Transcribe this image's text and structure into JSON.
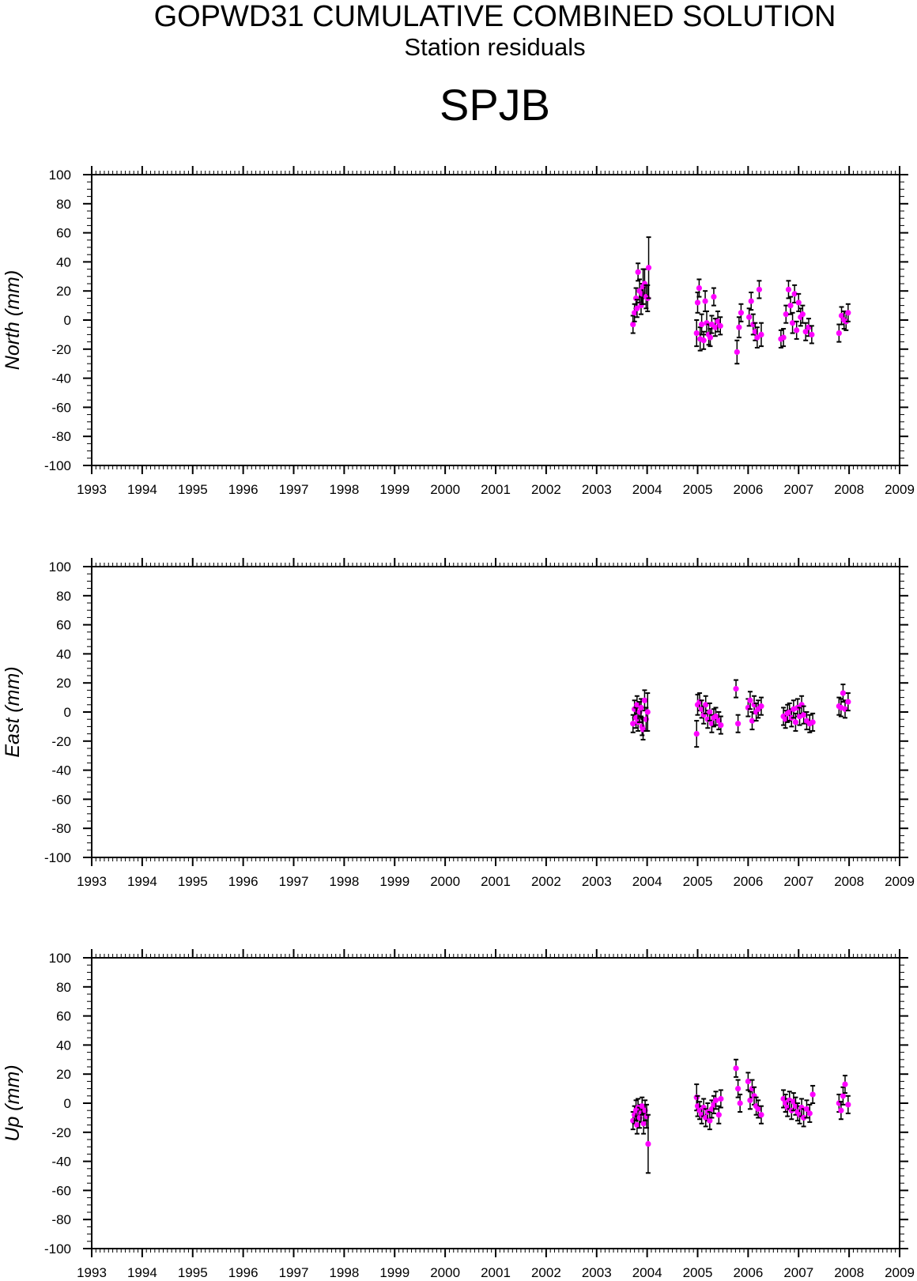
{
  "header": {
    "title": "GOPWD31 CUMULATIVE COMBINED SOLUTION",
    "subtitle": "Station residuals",
    "station": "SPJB"
  },
  "colors": {
    "marker": "#ff00ff",
    "error_bar": "#000000",
    "axes": "#000000"
  },
  "chart_data": [
    {
      "type": "scatter",
      "ylabel": "North (mm)",
      "xlim": [
        1993,
        2009
      ],
      "ylim": [
        -100,
        100
      ],
      "x_ticks": [
        "1993",
        "1994",
        "1995",
        "1996",
        "1997",
        "1998",
        "1999",
        "2000",
        "2001",
        "2002",
        "2003",
        "2004",
        "2005",
        "2006",
        "2007",
        "2008",
        "2009"
      ],
      "y_ticks": [
        "100",
        "80",
        "60",
        "40",
        "20",
        "0",
        "-20",
        "-40",
        "-60",
        "-80",
        "-100"
      ],
      "grid": false,
      "series": [
        {
          "x": [
            2003.72,
            2003.75,
            2003.78,
            2003.8,
            2003.82,
            2003.85,
            2003.88,
            2003.9,
            2003.92,
            2003.95,
            2003.98,
            2004.01,
            2004.03,
            2004.98,
            2005.0,
            2005.03,
            2005.05,
            2005.08,
            2005.12,
            2005.15,
            2005.18,
            2005.22,
            2005.25,
            2005.28,
            2005.32,
            2005.35,
            2005.4,
            2005.45,
            2005.78,
            2005.82,
            2005.86,
            2006.02,
            2006.06,
            2006.1,
            2006.14,
            2006.18,
            2006.22,
            2006.26,
            2006.65,
            2006.7,
            2006.75,
            2006.8,
            2006.84,
            2006.88,
            2006.92,
            2006.96,
            2007.0,
            2007.04,
            2007.08,
            2007.14,
            2007.2,
            2007.26,
            2007.8,
            2007.85,
            2007.9,
            2007.94,
            2007.98
          ],
          "y": [
            -3,
            5,
            15,
            8,
            33,
            20,
            10,
            18,
            23,
            25,
            16,
            15,
            36,
            -9,
            12,
            22,
            -13,
            -3,
            -14,
            13,
            -2,
            -10,
            -12,
            -3,
            16,
            -5,
            -1,
            -4,
            -22,
            -5,
            5,
            2,
            13,
            -3,
            -8,
            -12,
            21,
            -10,
            -13,
            -12,
            4,
            21,
            10,
            -2,
            18,
            -7,
            12,
            2,
            4,
            -8,
            -5,
            -10,
            -9,
            3,
            0,
            -1,
            5
          ],
          "err": [
            6,
            6,
            7,
            6,
            6,
            8,
            6,
            7,
            12,
            10,
            8,
            9,
            21,
            9,
            7,
            6,
            8,
            7,
            6,
            7,
            8,
            7,
            6,
            6,
            6,
            6,
            7,
            6,
            8,
            7,
            6,
            6,
            6,
            7,
            6,
            7,
            6,
            8,
            6,
            6,
            6,
            6,
            6,
            7,
            6,
            6,
            6,
            6,
            6,
            6,
            6,
            6,
            6,
            6,
            6,
            6,
            6
          ]
        }
      ]
    },
    {
      "type": "scatter",
      "ylabel": "East (mm)",
      "xlim": [
        1993,
        2009
      ],
      "ylim": [
        -100,
        100
      ],
      "x_ticks": [
        "1993",
        "1994",
        "1995",
        "1996",
        "1997",
        "1998",
        "1999",
        "2000",
        "2001",
        "2002",
        "2003",
        "2004",
        "2005",
        "2006",
        "2007",
        "2008",
        "2009"
      ],
      "y_ticks": [
        "100",
        "80",
        "60",
        "40",
        "20",
        "0",
        "-20",
        "-40",
        "-60",
        "-80",
        "-100"
      ],
      "grid": false,
      "series": [
        {
          "x": [
            2003.72,
            2003.75,
            2003.78,
            2003.8,
            2003.82,
            2003.85,
            2003.88,
            2003.9,
            2003.92,
            2003.95,
            2003.98,
            2004.01,
            2004.98,
            2005.0,
            2005.04,
            2005.08,
            2005.12,
            2005.16,
            2005.2,
            2005.24,
            2005.28,
            2005.32,
            2005.36,
            2005.42,
            2005.46,
            2005.76,
            2005.8,
            2006.0,
            2006.04,
            2006.08,
            2006.12,
            2006.16,
            2006.2,
            2006.26,
            2006.7,
            2006.74,
            2006.78,
            2006.82,
            2006.86,
            2006.9,
            2006.94,
            2006.98,
            2007.02,
            2007.06,
            2007.1,
            2007.16,
            2007.22,
            2007.28,
            2007.8,
            2007.84,
            2007.88,
            2007.92,
            2007.98
          ],
          "y": [
            -8,
            2,
            -4,
            5,
            -7,
            0,
            3,
            -10,
            -12,
            8,
            -5,
            0,
            -15,
            5,
            7,
            2,
            -2,
            5,
            -5,
            0,
            -8,
            -4,
            -3,
            -6,
            -9,
            16,
            -8,
            3,
            8,
            -6,
            5,
            0,
            2,
            4,
            -3,
            -5,
            -1,
            0,
            -4,
            2,
            -7,
            3,
            -3,
            5,
            -2,
            -6,
            -8,
            -7,
            4,
            3,
            13,
            2,
            7
          ],
          "err": [
            6,
            6,
            7,
            6,
            6,
            7,
            6,
            6,
            7,
            7,
            8,
            13,
            9,
            7,
            6,
            6,
            6,
            6,
            6,
            6,
            6,
            6,
            6,
            6,
            6,
            6,
            6,
            6,
            6,
            6,
            6,
            6,
            6,
            6,
            6,
            6,
            6,
            6,
            6,
            6,
            6,
            6,
            6,
            6,
            6,
            6,
            6,
            6,
            6,
            6,
            6,
            6,
            6
          ]
        }
      ]
    },
    {
      "type": "scatter",
      "ylabel": "Up (mm)",
      "xlim": [
        1993,
        2009
      ],
      "ylim": [
        -100,
        100
      ],
      "x_ticks": [
        "1993",
        "1994",
        "1995",
        "1996",
        "1997",
        "1998",
        "1999",
        "2000",
        "2001",
        "2002",
        "2003",
        "2004",
        "2005",
        "2006",
        "2007",
        "2008",
        "2009"
      ],
      "y_ticks": [
        "100",
        "80",
        "60",
        "40",
        "20",
        "0",
        "-20",
        "-40",
        "-60",
        "-80",
        "-100"
      ],
      "grid": false,
      "series": [
        {
          "x": [
            2003.72,
            2003.75,
            2003.78,
            2003.8,
            2003.82,
            2003.85,
            2003.88,
            2003.9,
            2003.93,
            2003.96,
            2003.99,
            2004.02,
            2004.98,
            2005.0,
            2005.04,
            2005.08,
            2005.12,
            2005.16,
            2005.2,
            2005.24,
            2005.28,
            2005.32,
            2005.36,
            2005.42,
            2005.46,
            2005.76,
            2005.8,
            2005.84,
            2006.0,
            2006.04,
            2006.08,
            2006.12,
            2006.16,
            2006.2,
            2006.26,
            2006.7,
            2006.74,
            2006.78,
            2006.82,
            2006.86,
            2006.9,
            2006.94,
            2006.98,
            2007.02,
            2007.06,
            2007.1,
            2007.16,
            2007.22,
            2007.28,
            2007.8,
            2007.84,
            2007.88,
            2007.92,
            2007.98
          ],
          "y": [
            -12,
            -8,
            -5,
            -15,
            -3,
            -10,
            -7,
            -2,
            -14,
            -5,
            -9,
            -28,
            4,
            -2,
            -5,
            -8,
            -3,
            -10,
            -6,
            -12,
            -4,
            -1,
            2,
            -8,
            3,
            24,
            10,
            0,
            15,
            2,
            10,
            5,
            -2,
            -4,
            -8,
            3,
            0,
            -3,
            2,
            -5,
            1,
            -2,
            -6,
            -8,
            -3,
            -10,
            -4,
            -7,
            6,
            0,
            -5,
            5,
            13,
            -1
          ],
          "err": [
            6,
            6,
            7,
            6,
            6,
            7,
            6,
            6,
            7,
            7,
            8,
            20,
            9,
            7,
            6,
            6,
            6,
            6,
            6,
            6,
            6,
            6,
            6,
            6,
            6,
            6,
            6,
            6,
            6,
            6,
            6,
            6,
            6,
            6,
            6,
            6,
            6,
            6,
            6,
            6,
            6,
            6,
            6,
            6,
            6,
            6,
            6,
            6,
            6,
            6,
            6,
            6,
            6,
            6
          ]
        }
      ]
    }
  ]
}
